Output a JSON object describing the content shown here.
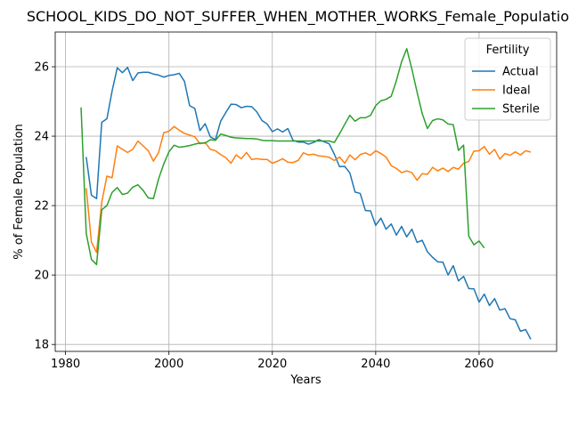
{
  "chart_data": {
    "type": "line",
    "title": "SCHOOL_KIDS_DO_NOT_SUFFER_WHEN_MOTHER_WORKS_Female_Population_",
    "xlabel": "Years",
    "ylabel": "% of Female Population",
    "xlim": [
      1978,
      2075
    ],
    "ylim": [
      17.8,
      27.0
    ],
    "xticks": [
      1980,
      2000,
      2020,
      2040,
      2060
    ],
    "yticks": [
      18,
      20,
      22,
      24,
      26
    ],
    "grid": true,
    "legend": {
      "title": "Fertility",
      "placement": "top-right"
    },
    "series": [
      {
        "name": "Actual",
        "color": "#1f77b4",
        "x": [
          1984,
          1985,
          1986,
          1987,
          1988,
          1989,
          1990,
          1991,
          1992,
          1993,
          1994,
          1995,
          1996,
          1997,
          1998,
          1999,
          2000,
          2001,
          2002,
          2003,
          2004,
          2005,
          2006,
          2007,
          2008,
          2009,
          2010,
          2011,
          2012,
          2013,
          2014,
          2015,
          2016,
          2017,
          2018,
          2019,
          2020,
          2021,
          2022,
          2023,
          2024,
          2025,
          2026,
          2027,
          2028,
          2029,
          2030,
          2031,
          2032,
          2033,
          2034,
          2035,
          2036,
          2037,
          2038,
          2039,
          2040,
          2041,
          2042,
          2043,
          2044,
          2045,
          2046,
          2047,
          2048,
          2049,
          2050,
          2051,
          2052,
          2053,
          2054,
          2055,
          2056,
          2057,
          2058,
          2059,
          2060,
          2061,
          2062,
          2063,
          2064,
          2065,
          2066,
          2067,
          2068,
          2069,
          2070
        ],
        "y": [
          23.4,
          22.3,
          22.2,
          24.4,
          24.5,
          25.3,
          25.97,
          25.83,
          25.98,
          25.6,
          25.82,
          25.84,
          25.84,
          25.79,
          25.76,
          25.7,
          25.75,
          25.77,
          25.81,
          25.58,
          24.88,
          24.8,
          24.16,
          24.36,
          23.98,
          23.9,
          24.43,
          24.68,
          24.92,
          24.91,
          24.82,
          24.86,
          24.85,
          24.7,
          24.45,
          24.35,
          24.13,
          24.21,
          24.12,
          24.22,
          23.88,
          23.83,
          23.83,
          23.77,
          23.82,
          23.9,
          23.84,
          23.78,
          23.48,
          23.12,
          23.13,
          22.94,
          22.39,
          22.35,
          21.86,
          21.85,
          21.43,
          21.64,
          21.32,
          21.47,
          21.15,
          21.4,
          21.1,
          21.32,
          20.94,
          21.0,
          20.67,
          20.51,
          20.38,
          20.37,
          20.0,
          20.27,
          19.83,
          19.96,
          19.61,
          19.6,
          19.22,
          19.45,
          19.12,
          19.32,
          18.99,
          19.03,
          18.74,
          18.71,
          18.38,
          18.43,
          18.15
        ]
      },
      {
        "name": "Ideal",
        "color": "#ff7f0e",
        "x": [
          1984,
          1985,
          1986,
          1987,
          1988,
          1989,
          1990,
          1991,
          1992,
          1993,
          1994,
          1995,
          1996,
          1997,
          1998,
          1999,
          2000,
          2001,
          2002,
          2003,
          2004,
          2005,
          2006,
          2007,
          2008,
          2009,
          2010,
          2011,
          2012,
          2013,
          2014,
          2015,
          2016,
          2017,
          2018,
          2019,
          2020,
          2021,
          2022,
          2023,
          2024,
          2025,
          2026,
          2027,
          2028,
          2029,
          2030,
          2031,
          2032,
          2033,
          2034,
          2035,
          2036,
          2037,
          2038,
          2039,
          2040,
          2041,
          2042,
          2043,
          2044,
          2045,
          2046,
          2047,
          2048,
          2049,
          2050,
          2051,
          2052,
          2053,
          2054,
          2055,
          2056,
          2057,
          2058,
          2059,
          2060,
          2061,
          2062,
          2063,
          2064,
          2065,
          2066,
          2067,
          2068,
          2069,
          2070
        ],
        "y": [
          22.5,
          20.95,
          20.65,
          22.1,
          22.85,
          22.8,
          23.72,
          23.62,
          23.53,
          23.62,
          23.86,
          23.72,
          23.58,
          23.28,
          23.53,
          24.1,
          24.14,
          24.28,
          24.17,
          24.08,
          24.03,
          23.98,
          23.78,
          23.82,
          23.62,
          23.58,
          23.47,
          23.38,
          23.22,
          23.46,
          23.35,
          23.53,
          23.33,
          23.35,
          23.33,
          23.33,
          23.22,
          23.28,
          23.35,
          23.25,
          23.24,
          23.3,
          23.52,
          23.46,
          23.48,
          23.43,
          23.42,
          23.39,
          23.3,
          23.4,
          23.22,
          23.46,
          23.32,
          23.47,
          23.52,
          23.45,
          23.58,
          23.5,
          23.4,
          23.15,
          23.07,
          22.95,
          23.0,
          22.95,
          22.73,
          22.92,
          22.9,
          23.1,
          23.0,
          23.08,
          22.98,
          23.1,
          23.05,
          23.22,
          23.27,
          23.57,
          23.58,
          23.7,
          23.48,
          23.62,
          23.34,
          23.5,
          23.45,
          23.55,
          23.46,
          23.58,
          23.54
        ]
      },
      {
        "name": "Sterile",
        "color": "#2ca02c",
        "x": [
          1983,
          1984,
          1985,
          1986,
          1987,
          1988,
          1989,
          1990,
          1991,
          1992,
          1993,
          1994,
          1995,
          1996,
          1997,
          1998,
          1999,
          2000,
          2001,
          2002,
          2003,
          2004,
          2005,
          2006,
          2007,
          2008,
          2009,
          2010,
          2011,
          2012,
          2013,
          2014,
          2015,
          2016,
          2017,
          2018,
          2019,
          2020,
          2021,
          2022,
          2023,
          2024,
          2025,
          2026,
          2027,
          2028,
          2029,
          2030,
          2031,
          2032,
          2033,
          2034,
          2035,
          2036,
          2037,
          2038,
          2039,
          2040,
          2041,
          2042,
          2043,
          2044,
          2045,
          2046,
          2047,
          2048,
          2049,
          2050,
          2051,
          2052,
          2053,
          2054,
          2055,
          2056,
          2057,
          2058,
          2059,
          2060,
          2061
        ],
        "y": [
          24.83,
          21.2,
          20.45,
          20.3,
          21.88,
          22.0,
          22.38,
          22.52,
          22.32,
          22.36,
          22.53,
          22.6,
          22.44,
          22.22,
          22.2,
          22.77,
          23.2,
          23.55,
          23.74,
          23.68,
          23.7,
          23.73,
          23.77,
          23.8,
          23.8,
          23.9,
          23.88,
          24.06,
          24.02,
          23.97,
          23.95,
          23.94,
          23.93,
          23.93,
          23.92,
          23.88,
          23.87,
          23.87,
          23.86,
          23.86,
          23.86,
          23.86,
          23.86,
          23.86,
          23.86,
          23.86,
          23.86,
          23.86,
          23.86,
          23.82,
          24.07,
          24.34,
          24.6,
          24.43,
          24.53,
          24.53,
          24.6,
          24.88,
          25.02,
          25.06,
          25.15,
          25.6,
          26.14,
          26.52,
          25.93,
          25.27,
          24.65,
          24.22,
          24.45,
          24.5,
          24.47,
          24.35,
          24.33,
          23.59,
          23.74,
          21.12,
          20.87,
          20.98,
          20.78
        ]
      }
    ]
  }
}
